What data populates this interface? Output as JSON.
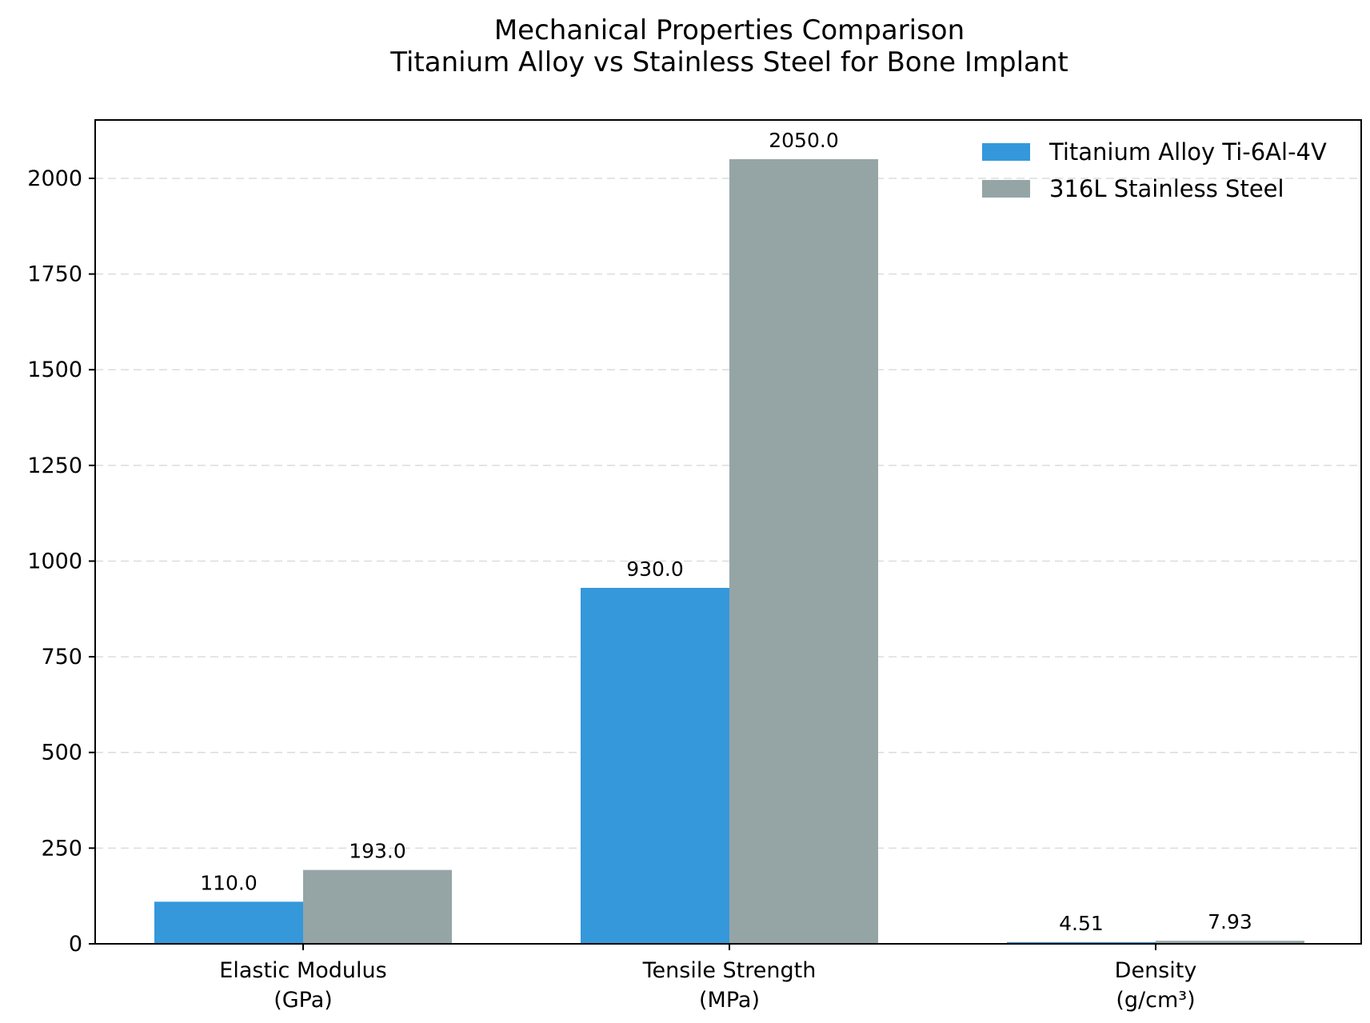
{
  "chart_data": {
    "type": "bar",
    "title_lines": [
      "Mechanical Properties Comparison",
      "Titanium Alloy vs Stainless Steel for Bone Implant"
    ],
    "categories": [
      [
        "Elastic Modulus",
        "(GPa)"
      ],
      [
        "Tensile Strength",
        "(MPa)"
      ],
      [
        "Density",
        "(g/cm³)"
      ]
    ],
    "series": [
      {
        "name": "Titanium Alloy Ti-6Al-4V",
        "color": "#3498db",
        "values": [
          110.0,
          930.0,
          4.51
        ],
        "labels": [
          "110.0",
          "930.0",
          "4.51"
        ]
      },
      {
        "name": "316L Stainless Steel",
        "color": "#95a5a6",
        "values": [
          193.0,
          2050.0,
          7.93
        ],
        "labels": [
          "193.0",
          "2050.0",
          "7.93"
        ]
      }
    ],
    "yticks": [
      0,
      250,
      500,
      750,
      1000,
      1250,
      1500,
      1750,
      2000
    ],
    "ylim": [
      0,
      2152.5
    ],
    "grid": "y-dashed",
    "legend_position": "top-right"
  }
}
